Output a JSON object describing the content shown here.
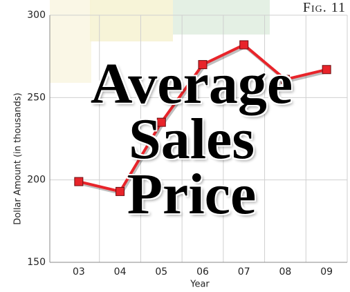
{
  "chart_data": {
    "type": "line",
    "title": "Average Sales Price",
    "figure_label": "Fig. 11",
    "y_label": "Dollar Amount (in thousands)",
    "x_label": "Year",
    "categories": [
      "03",
      "04",
      "05",
      "06",
      "07",
      "08",
      "09"
    ],
    "values": [
      199,
      193,
      235,
      270,
      282,
      261,
      267
    ],
    "color": "#e8242a",
    "ylim": [
      150,
      300
    ],
    "yticks": [
      150,
      200,
      250,
      300
    ],
    "grid": true
  }
}
